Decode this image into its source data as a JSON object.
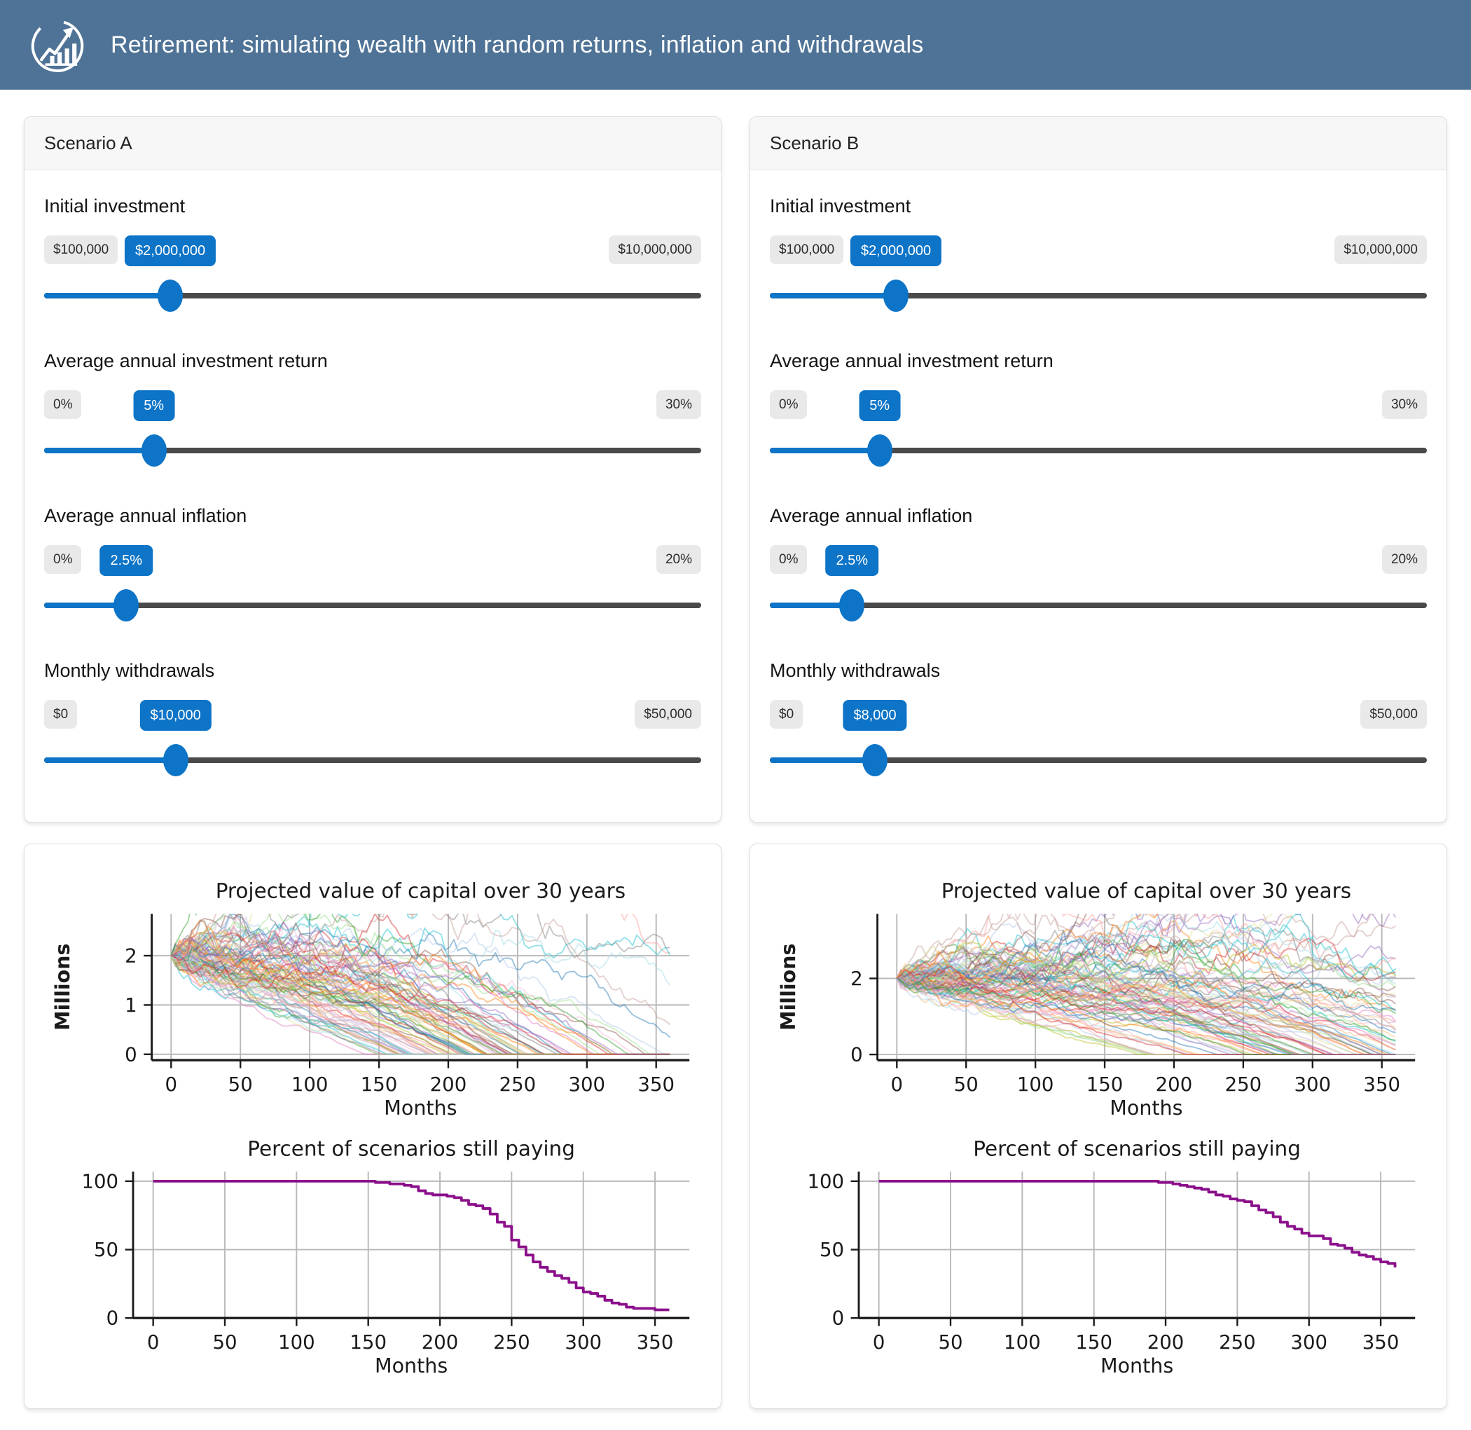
{
  "header": {
    "title": "Retirement: simulating wealth with random returns, inflation and withdrawals"
  },
  "colors": {
    "accent_blue": "#0d74c7",
    "header_bg": "#4f7396",
    "track_gray": "#4a4a4a",
    "badge_gray_bg": "#e9e9ea",
    "grid_gray": "#b8b8b8",
    "axis_black": "#1a1a1a",
    "percent_line": "#8b0f8b",
    "spaghetti_palette": [
      "#1f77b4",
      "#ff7f0e",
      "#2ca02c",
      "#d62728",
      "#9467bd",
      "#8c564b",
      "#e377c2",
      "#7f7f7f",
      "#bcbd22",
      "#17becf",
      "#aec7e8",
      "#ffbb78",
      "#98df8a",
      "#ff9896",
      "#c5b0d5",
      "#c49c94",
      "#f7b6d2",
      "#dbdb8d",
      "#9edae5"
    ]
  },
  "scenarios": [
    {
      "title": "Scenario A",
      "sliders": [
        {
          "label": "Initial investment",
          "min_label": "$100,000",
          "max_label": "$10,000,000",
          "value_label": "$2,000,000",
          "percent": 19.2
        },
        {
          "label": "Average annual investment return",
          "min_label": "0%",
          "max_label": "30%",
          "value_label": "5%",
          "percent": 16.7
        },
        {
          "label": "Average annual inflation",
          "min_label": "0%",
          "max_label": "20%",
          "value_label": "2.5%",
          "percent": 12.5
        },
        {
          "label": "Monthly withdrawals",
          "min_label": "$0",
          "max_label": "$50,000",
          "value_label": "$10,000",
          "percent": 20
        }
      ]
    },
    {
      "title": "Scenario B",
      "sliders": [
        {
          "label": "Initial investment",
          "min_label": "$100,000",
          "max_label": "$10,000,000",
          "value_label": "$2,000,000",
          "percent": 19.2
        },
        {
          "label": "Average annual investment return",
          "min_label": "0%",
          "max_label": "30%",
          "value_label": "5%",
          "percent": 16.7
        },
        {
          "label": "Average annual inflation",
          "min_label": "0%",
          "max_label": "20%",
          "value_label": "2.5%",
          "percent": 12.5
        },
        {
          "label": "Monthly withdrawals",
          "min_label": "$0",
          "max_label": "$50,000",
          "value_label": "$8,000",
          "percent": 16
        }
      ]
    }
  ],
  "chart_data": [
    {
      "scenario": "A",
      "type": "line",
      "subtype": "monte-carlo-spaghetti",
      "title": "Projected value of capital over 30 years",
      "xlabel": "Months",
      "ylabel": "Millions",
      "xlim": [
        -14,
        374
      ],
      "ylim": [
        -0.12,
        2.85
      ],
      "xticks": [
        0,
        50,
        100,
        150,
        200,
        250,
        300,
        350
      ],
      "yticks": [
        0,
        1,
        2
      ],
      "grid": true,
      "legend": false,
      "simulation": {
        "n_paths": 100,
        "months": 360,
        "start_millions": 2.0,
        "monthly_return_mean": 0.0041,
        "monthly_volatility": 0.028,
        "initial_monthly_withdrawal_millions": 0.01,
        "annual_inflation": 0.025,
        "seed": 7
      }
    },
    {
      "scenario": "A",
      "type": "line",
      "title": "Percent of scenarios still paying",
      "xlabel": "Months",
      "xlim": [
        -14,
        374
      ],
      "ylim": [
        0,
        107
      ],
      "xticks": [
        0,
        50,
        100,
        150,
        200,
        250,
        300,
        350
      ],
      "yticks": [
        0,
        50,
        100
      ],
      "grid": true,
      "legend": false,
      "series": [
        {
          "name": "percent_still_paying",
          "color": "#8b0f8b",
          "x": [
            0,
            150,
            155,
            160,
            165,
            170,
            175,
            180,
            185,
            190,
            195,
            200,
            205,
            210,
            215,
            220,
            225,
            230,
            235,
            240,
            245,
            250,
            255,
            260,
            265,
            270,
            275,
            280,
            285,
            290,
            295,
            300,
            305,
            310,
            315,
            320,
            325,
            330,
            335,
            340,
            345,
            350,
            355,
            360
          ],
          "y": [
            100,
            100,
            99,
            99,
            98,
            98,
            97,
            96,
            93,
            91,
            90,
            90,
            89,
            88,
            86,
            83,
            82,
            80,
            76,
            70,
            67,
            57,
            52,
            46,
            41,
            37,
            34,
            31,
            29,
            26,
            22,
            19,
            18,
            16,
            13,
            11,
            10,
            8,
            7,
            7,
            7,
            6,
            6,
            6
          ]
        }
      ]
    },
    {
      "scenario": "B",
      "type": "line",
      "subtype": "monte-carlo-spaghetti",
      "title": "Projected value of capital over 30 years",
      "xlabel": "Months",
      "ylabel": "Millions",
      "xlim": [
        -14,
        374
      ],
      "ylim": [
        -0.15,
        3.7
      ],
      "xticks": [
        0,
        50,
        100,
        150,
        200,
        250,
        300,
        350
      ],
      "yticks": [
        0,
        2
      ],
      "grid": true,
      "legend": false,
      "simulation": {
        "n_paths": 100,
        "months": 360,
        "start_millions": 2.0,
        "monthly_return_mean": 0.0041,
        "monthly_volatility": 0.028,
        "initial_monthly_withdrawal_millions": 0.008,
        "annual_inflation": 0.025,
        "seed": 21
      }
    },
    {
      "scenario": "B",
      "type": "line",
      "title": "Percent of scenarios still paying",
      "xlabel": "Months",
      "xlim": [
        -14,
        374
      ],
      "ylim": [
        0,
        107
      ],
      "xticks": [
        0,
        50,
        100,
        150,
        200,
        250,
        300,
        350
      ],
      "yticks": [
        0,
        50,
        100
      ],
      "grid": true,
      "legend": false,
      "series": [
        {
          "name": "percent_still_paying",
          "color": "#8b0f8b",
          "x": [
            0,
            190,
            195,
            200,
            205,
            210,
            215,
            220,
            225,
            230,
            235,
            240,
            245,
            250,
            255,
            260,
            265,
            270,
            275,
            280,
            285,
            290,
            295,
            300,
            305,
            310,
            315,
            320,
            325,
            330,
            335,
            340,
            345,
            350,
            355,
            360
          ],
          "y": [
            100,
            100,
            99,
            99,
            98,
            97,
            96,
            95,
            94,
            92,
            90,
            89,
            87,
            86,
            85,
            82,
            79,
            77,
            74,
            70,
            67,
            65,
            62,
            60,
            60,
            58,
            54,
            53,
            51,
            48,
            46,
            45,
            43,
            41,
            40,
            37
          ]
        }
      ]
    }
  ]
}
